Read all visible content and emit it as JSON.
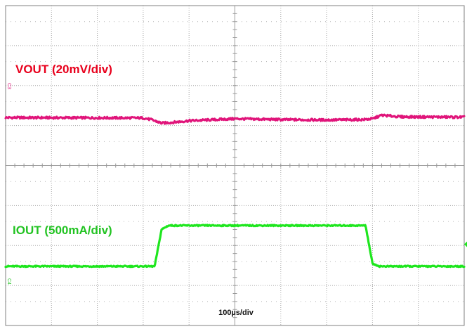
{
  "chart_data": {
    "type": "line",
    "title": "",
    "grid": true,
    "x": {
      "label": "100µs/div",
      "divisions": 10,
      "unit_per_div_us": 100,
      "range_us": [
        0,
        1000
      ]
    },
    "y": {
      "divisions": 8
    },
    "series": [
      {
        "name": "VOUT (20mV/div)",
        "channel_marker": "C3",
        "color": "#e0147a",
        "baseline_div": 5.2,
        "points_us_div": [
          [
            0,
            5.2
          ],
          [
            300,
            5.19
          ],
          [
            320,
            5.14
          ],
          [
            340,
            5.06
          ],
          [
            365,
            5.08
          ],
          [
            400,
            5.12
          ],
          [
            500,
            5.17
          ],
          [
            600,
            5.15
          ],
          [
            700,
            5.14
          ],
          [
            780,
            5.15
          ],
          [
            800,
            5.17
          ],
          [
            820,
            5.26
          ],
          [
            860,
            5.22
          ],
          [
            1000,
            5.21
          ]
        ]
      },
      {
        "name": "IOUT (500mA/div)",
        "channel_marker": "C4",
        "color": "#1ee61e",
        "low_div": 1.48,
        "high_div": 2.5,
        "points_us_div": [
          [
            0,
            1.48
          ],
          [
            325,
            1.48
          ],
          [
            340,
            2.4
          ],
          [
            355,
            2.5
          ],
          [
            785,
            2.5
          ],
          [
            800,
            1.55
          ],
          [
            815,
            1.48
          ],
          [
            1000,
            1.48
          ]
        ]
      }
    ]
  }
}
